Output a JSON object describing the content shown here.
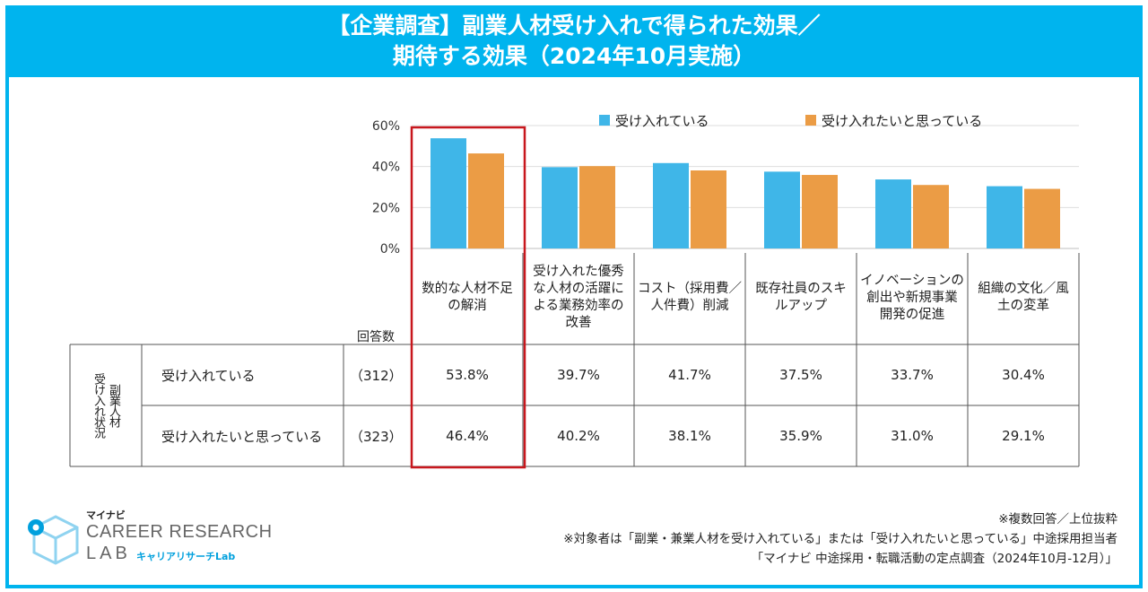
{
  "header": {
    "title_line1": "【企業調査】副業人材受け入れで得られた効果／",
    "title_line2": "期待する効果（2024年10月実施）"
  },
  "colors": {
    "frame": "#00b4ee",
    "series_accepting": "#3fb6e8",
    "series_wanting": "#eb9c45",
    "highlight": "#c8171d"
  },
  "chart_data": {
    "type": "bar",
    "categories": [
      "数的な人材不足の解消",
      "受け入れた優秀な人材の活躍による業務効率の改善",
      "コスト（採用費／人件費）削減",
      "既存社員のスキルアップ",
      "イノベーションの創出や新規事業開発の促進",
      "組織の文化／風土の変革"
    ],
    "series": [
      {
        "name": "受け入れている",
        "values": [
          53.8,
          39.7,
          41.7,
          37.5,
          33.7,
          30.4
        ]
      },
      {
        "name": "受け入れたいと思っている",
        "values": [
          46.4,
          40.2,
          38.1,
          35.9,
          31.0,
          29.1
        ]
      }
    ],
    "ylim": [
      0,
      60
    ],
    "yticks": [
      "0%",
      "20%",
      "40%",
      "60%"
    ],
    "grid": true,
    "legend_position": "top",
    "highlighted_category_index": 0
  },
  "category_labels": [
    "数的な人材不足\nの解消",
    "受け入れた優秀\nな人材の活躍に\nよる業務効率の\n改善",
    "コスト（採用費／\n人件費）削減",
    "既存社員のスキ\nルアップ",
    "イノベーションの\n創出や新規事業\n開発の促進",
    "組織の文化／風\n土の変革"
  ],
  "table": {
    "count_header": "回答数",
    "group_label_col1": "副業人材",
    "group_label_col2": "受け入れ状況",
    "rows": [
      {
        "label": "受け入れている",
        "count": "（312）",
        "values": [
          "53.8%",
          "39.7%",
          "41.7%",
          "37.5%",
          "33.7%",
          "30.4%"
        ]
      },
      {
        "label": "受け入れたいと思っている",
        "count": "（323）",
        "values": [
          "46.4%",
          "40.2%",
          "38.1%",
          "35.9%",
          "31.0%",
          "29.1%"
        ]
      }
    ]
  },
  "logo": {
    "brand": "マイナビ",
    "line1": "CAREER RESEARCH",
    "line2": "LAB",
    "japanese": "キャリアリサーチLab"
  },
  "notes": [
    "※複数回答／上位抜粋",
    "※対象者は「副業・兼業人材を受け入れている」または「受け入れたいと思っている」中途採用担当者",
    "「マイナビ 中途採用・転職活動の定点調査（2024年10月-12月）」"
  ]
}
